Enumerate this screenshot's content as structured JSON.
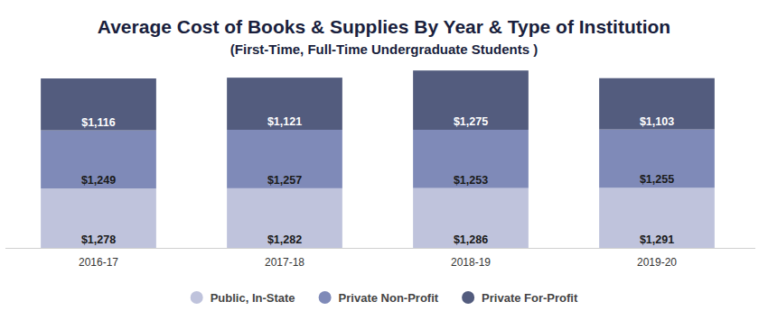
{
  "chart_data": {
    "type": "bar",
    "stacked": true,
    "data_labels": true,
    "tick_labels": "x",
    "legend": "bottom",
    "title": "Average Cost of Books & Supplies By Year & Type of Institution",
    "subtitle": "(First-Time, Full-Time Undergraduate Students )",
    "categories": [
      "2016-17",
      "2017-18",
      "2018-19",
      "2019-20"
    ],
    "ylim": [
      0,
      4000
    ],
    "series": [
      {
        "name": "Public, In-State",
        "color": "#bfc3dc",
        "values": [
          1278,
          1282,
          1286,
          1291
        ],
        "value_labels": [
          "$1,278",
          "$1,282",
          "$1,286",
          "$1,291"
        ]
      },
      {
        "name": "Private Non-Profit",
        "color": "#7f8ab8",
        "values": [
          1249,
          1257,
          1253,
          1255
        ],
        "value_labels": [
          "$1,249",
          "$1,257",
          "$1,253",
          "$1,255"
        ]
      },
      {
        "name": "Private For-Profit",
        "color": "#535c7e",
        "values": [
          1116,
          1121,
          1275,
          1103
        ],
        "value_labels": [
          "$1,116",
          "$1,121",
          "$1,275",
          "$1,103"
        ]
      }
    ]
  }
}
